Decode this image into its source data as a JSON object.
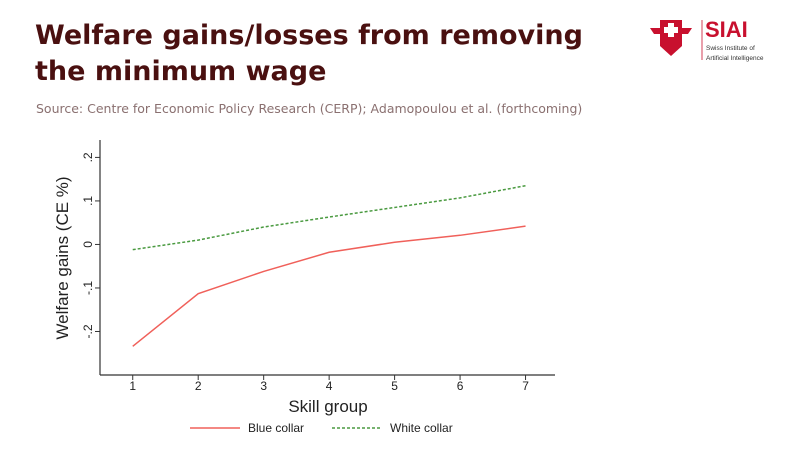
{
  "slide": {
    "title": "Welfare gains/losses from removing the minimum wage",
    "source": "Source: Centre for Economic Policy Research (CERP); Adamopoulou et al. (forthcoming)"
  },
  "logo": {
    "name": "SIAI",
    "subtitle_line1": "Swiss Institute of",
    "subtitle_line2": "Artificial Intelligence",
    "color": "#c8102e"
  },
  "chart_data": {
    "type": "line",
    "title": "",
    "xlabel": "Skill group",
    "ylabel": "Welfare gains (CE %)",
    "x": [
      1,
      2,
      3,
      4,
      5,
      6,
      7
    ],
    "xticks": [
      "1",
      "2",
      "3",
      "4",
      "5",
      "6",
      "7"
    ],
    "yticks": [
      -0.2,
      -0.1,
      0,
      0.1,
      0.2
    ],
    "ytick_labels": [
      "-.2",
      "-.1",
      "0",
      ".1",
      ".2"
    ],
    "ylim": [
      -0.3,
      0.24
    ],
    "xlim": [
      0.5,
      7.45
    ],
    "grid": false,
    "legend_placement": "bottom",
    "series": [
      {
        "name": "Blue collar",
        "values": [
          -0.234,
          -0.113,
          -0.062,
          -0.018,
          0.005,
          0.021,
          0.042
        ],
        "color": "#f0605a",
        "style": "solid"
      },
      {
        "name": "White collar",
        "values": [
          -0.012,
          0.01,
          0.04,
          0.063,
          0.085,
          0.107,
          0.135
        ],
        "color": "#4a9a40",
        "style": "dashed"
      }
    ]
  }
}
